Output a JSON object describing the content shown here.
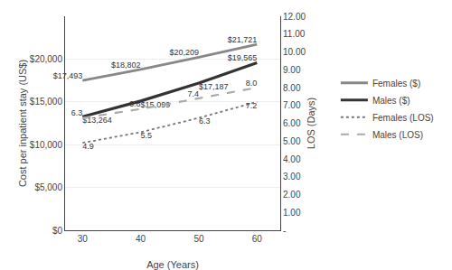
{
  "chart_data": {
    "type": "line",
    "xlabel": "Age (Years)",
    "ylabel": "Cost per inpatient stay (US$)",
    "y2label": "LOS (Days)",
    "x": [
      30,
      40,
      50,
      60
    ],
    "xlim": [
      27,
      64
    ],
    "xticks": [
      30,
      40,
      50,
      60
    ],
    "ylim": [
      0,
      25000
    ],
    "yticks": [
      {
        "value": 0,
        "label": "$0"
      },
      {
        "value": 5000,
        "label": "$5,000"
      },
      {
        "value": 10000,
        "label": "$10,000"
      },
      {
        "value": 15000,
        "label": "$15,000"
      },
      {
        "value": 20000,
        "label": "$20,000"
      }
    ],
    "y2lim": [
      0,
      12
    ],
    "y2ticks": [
      {
        "value": 0,
        "label": "-"
      },
      {
        "value": 1.0,
        "label": "1.00"
      },
      {
        "value": 2.0,
        "label": "2.00"
      },
      {
        "value": 3.0,
        "label": "3.00"
      },
      {
        "value": 4.0,
        "label": "4.00"
      },
      {
        "value": 5.0,
        "label": "5.00"
      },
      {
        "value": 6.0,
        "label": "6.00"
      },
      {
        "value": 7.0,
        "label": "7.00"
      },
      {
        "value": 8.0,
        "label": "8.00"
      },
      {
        "value": 9.0,
        "label": "9.00"
      },
      {
        "value": 10.0,
        "label": "10.00"
      },
      {
        "value": 11.0,
        "label": "11.00"
      },
      {
        "value": 12.0,
        "label": "12.00"
      }
    ],
    "grid": true,
    "legend": "right",
    "data_labels": true,
    "series": [
      {
        "name": "Females ($)",
        "color": "#888888",
        "line_style": "solid",
        "values": [
          17493,
          18802,
          20209,
          21721
        ],
        "value_labels": [
          "$17,493",
          "$18,802",
          "$20,209",
          "$21,721"
        ]
      },
      {
        "name": "Males ($)",
        "color": "#333333",
        "line_style": "solid",
        "values": [
          13264,
          15099,
          17187,
          19565
        ],
        "value_labels": [
          "$13,264",
          "$15,099",
          "$17,187",
          "$19,565"
        ]
      },
      {
        "name": "Females (LOS)",
        "color": "#777777",
        "line_style": "dotted",
        "axis": "y2",
        "values": [
          4.9,
          5.5,
          6.3,
          7.2
        ],
        "value_labels": [
          "4.9",
          "5.5",
          "6.3",
          "7.2"
        ]
      },
      {
        "name": "Males (LOS)",
        "color": "#aaaaaa",
        "line_style": "dashed",
        "axis": "y2",
        "values": [
          6.3,
          6.8,
          7.4,
          8.0
        ],
        "value_labels": [
          "6.3",
          "6.8",
          "7.4",
          "8.0"
        ]
      }
    ]
  }
}
